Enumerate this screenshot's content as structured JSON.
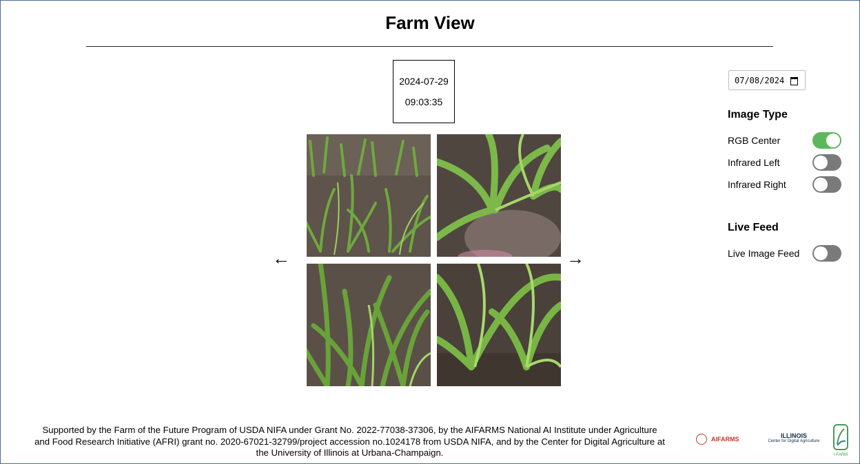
{
  "page": {
    "title": "Farm View"
  },
  "capture": {
    "date": "2024-07-29",
    "time": "09:03:35"
  },
  "nav": {
    "prev": "←",
    "next": "→"
  },
  "date_picker": {
    "value": "07/08/2024"
  },
  "image_type": {
    "heading": "Image Type",
    "options": [
      {
        "label": "RGB Center",
        "on": true
      },
      {
        "label": "Infrared Left",
        "on": false
      },
      {
        "label": "Infrared Right",
        "on": false
      }
    ]
  },
  "live_feed": {
    "heading": "Live Feed",
    "label": "Live Image Feed",
    "on": false
  },
  "footer": {
    "line1": "Supported by the Farm of the Future Program of USDA NIFA under Grant No. 2022-77038-37306, by the AIFARMS National AI Institute under Agriculture",
    "line2": "and Food Research Initiative (AFRI) grant no. 2020-67021-32799/project accession no.1024178 from USDA NIFA, and by the Center for Digital Agriculture at",
    "line3": "the University of Illinois at Urbana-Champaign."
  },
  "logos": {
    "aifarms": "AIFARMS",
    "illinois": "ILLINOIS",
    "illinois_sub": "Center for Digital Agriculture",
    "ifarm": "I-FARM"
  },
  "colors": {
    "toggle_on": "#5cb85c",
    "toggle_off": "#7a7a7a",
    "soil": "#5b5048",
    "leaf": "#6fa83e"
  }
}
